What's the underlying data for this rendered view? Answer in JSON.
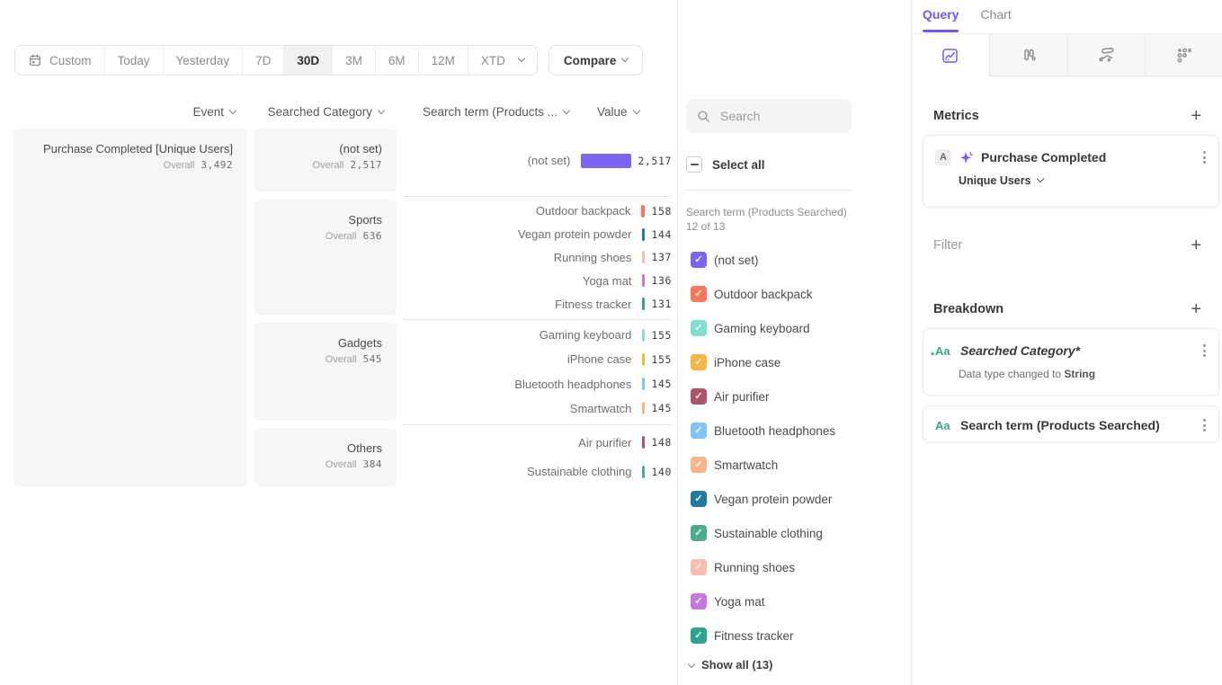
{
  "toolbar": {
    "segments": [
      {
        "label": "Custom",
        "icon": "calendar"
      },
      {
        "label": "Today"
      },
      {
        "label": "Yesterday"
      },
      {
        "label": "7D"
      },
      {
        "label": "30D",
        "selected": true
      },
      {
        "label": "3M"
      },
      {
        "label": "6M"
      },
      {
        "label": "12M"
      },
      {
        "label": "XTD",
        "chevron": true
      }
    ],
    "compare_label": "Compare",
    "chart_type_label": "Bar"
  },
  "columns": {
    "event": "Event",
    "category": "Searched Category",
    "term": "Search term (Products ...",
    "value": "Value"
  },
  "overall_label": "Overall",
  "event_card": {
    "title": "Purchase Completed [Unique Users]",
    "overall_label": "Overall",
    "overall_value": "3,492"
  },
  "chart_data": {
    "type": "bar",
    "event": "Purchase Completed [Unique Users]",
    "metric": "Unique Users",
    "overall_total": 3492,
    "xlim": [
      0,
      2517
    ],
    "groups": [
      {
        "category": "(not set)",
        "overall": 2517,
        "terms": [
          {
            "term": "(not set)",
            "value": 2517
          }
        ]
      },
      {
        "category": "Sports",
        "overall": 636,
        "terms": [
          {
            "term": "Outdoor backpack",
            "value": 158
          },
          {
            "term": "Vegan protein powder",
            "value": 144
          },
          {
            "term": "Running shoes",
            "value": 137
          },
          {
            "term": "Yoga mat",
            "value": 136
          },
          {
            "term": "Fitness tracker",
            "value": 131
          }
        ]
      },
      {
        "category": "Gadgets",
        "overall": 545,
        "terms": [
          {
            "term": "Gaming keyboard",
            "value": 155
          },
          {
            "term": "iPhone case",
            "value": 155
          },
          {
            "term": "Bluetooth headphones",
            "value": 145
          },
          {
            "term": "Smartwatch",
            "value": 145
          }
        ]
      },
      {
        "category": "Others",
        "overall": 384,
        "terms": [
          {
            "term": "Air purifier",
            "value": 148
          },
          {
            "term": "Sustainable clothing",
            "value": 140
          }
        ]
      }
    ]
  },
  "colors": {
    "accent": "#6A5BF7",
    "term_colors": {
      "(not set)": "#7C64F0",
      "Outdoor backpack": "#F8765A",
      "Gaming keyboard": "#7FDFD0",
      "iPhone case": "#F6B544",
      "Air purifier": "#B05467",
      "Bluetooth headphones": "#7FC4F5",
      "Smartwatch": "#FAB488",
      "Vegan protein powder": "#1E7D9E",
      "Sustainable clothing": "#49AD8C",
      "Running shoes": "#FABCAC",
      "Yoga mat": "#C877DF",
      "Fitness tracker": "#2EA390"
    }
  },
  "legend": {
    "search_placeholder": "Search",
    "select_all_label": "Select all",
    "group_label": "Search term (Products Searched) 12 of 13",
    "items": [
      "(not set)",
      "Outdoor backpack",
      "Gaming keyboard",
      "iPhone case",
      "Air purifier",
      "Bluetooth headphones",
      "Smartwatch",
      "Vegan protein powder",
      "Sustainable clothing",
      "Running shoes",
      "Yoga mat",
      "Fitness tracker"
    ],
    "show_all_label": "Show all (13)"
  },
  "query_panel": {
    "tabs": [
      {
        "label": "Query"
      },
      {
        "label": "Chart"
      }
    ],
    "metrics_heading": "Metrics",
    "metric_card": {
      "badge": "A",
      "title": "Purchase Completed",
      "subtitle": "Unique Users"
    },
    "filter_heading": "Filter",
    "breakdown_heading": "Breakdown",
    "breakdown_items": [
      {
        "icon": "Aa",
        "label": "Searched Category*",
        "note_prefix": "Data type changed to ",
        "note_bold": "String"
      },
      {
        "icon": "Aa",
        "label": "Search term (Products Searched)"
      }
    ]
  }
}
